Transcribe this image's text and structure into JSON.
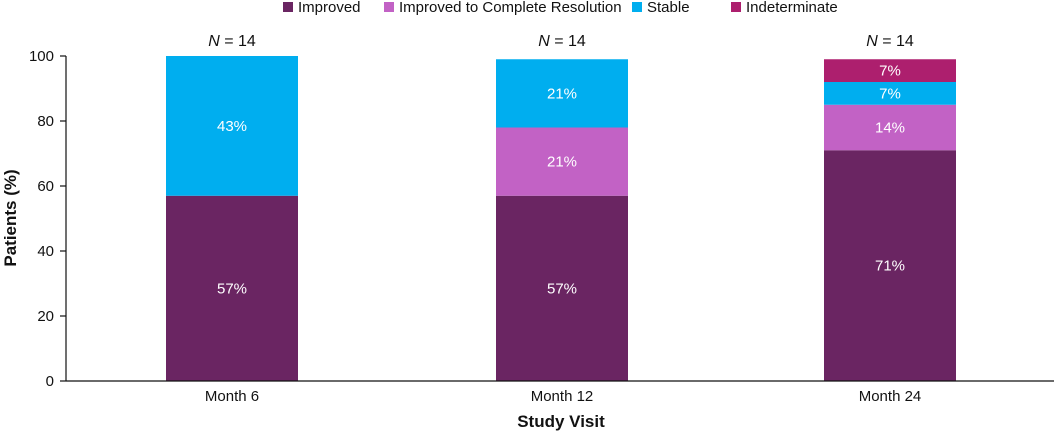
{
  "chart_data": {
    "type": "bar",
    "stacked": true,
    "xlabel": "Study Visit",
    "ylabel": "Patients (%)",
    "ylim": [
      0,
      100
    ],
    "yticks": [
      0,
      20,
      40,
      60,
      80,
      100
    ],
    "grid": false,
    "legend_position": "top",
    "categories": [
      "Month 6",
      "Month 12",
      "Month 24"
    ],
    "n_labels": [
      "= 14",
      "= 14",
      "= 14"
    ],
    "n_prefix": "N",
    "series": [
      {
        "name": "Improved",
        "color": "#6a2562",
        "values": [
          57,
          57,
          71
        ],
        "labels": [
          "57%",
          "57%",
          "71%"
        ]
      },
      {
        "name": "Improved to Complete Resolution",
        "color": "#c262c5",
        "values": [
          0,
          21,
          14
        ],
        "labels": [
          "",
          "21%",
          "14%"
        ]
      },
      {
        "name": "Stable",
        "color": "#00aeef",
        "values": [
          43,
          21,
          7
        ],
        "labels": [
          "43%",
          "21%",
          "7%"
        ]
      },
      {
        "name": "Indeterminate",
        "color": "#ad1f6e",
        "values": [
          0,
          0,
          7
        ],
        "labels": [
          "",
          "",
          "7%"
        ]
      }
    ]
  }
}
